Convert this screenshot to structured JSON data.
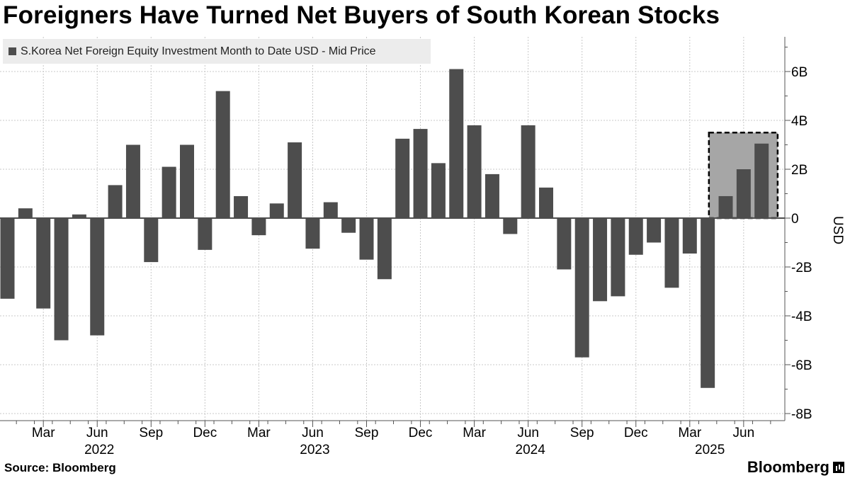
{
  "title": "Foreigners Have Turned Net Buyers of South Korean Stocks",
  "source": "Source: Bloomberg",
  "brand": "Bloomberg",
  "chart_data": {
    "type": "bar",
    "series": [
      {
        "name": "S.Korea Net Foreign Equity Investment Month to Date USD - Mid Price",
        "values": [
          -3.3,
          0.4,
          -3.7,
          -5.0,
          0.15,
          -4.8,
          1.35,
          3.0,
          -1.8,
          2.1,
          3.0,
          -1.3,
          5.2,
          0.9,
          -0.7,
          0.6,
          3.1,
          -1.25,
          0.65,
          -0.6,
          -1.7,
          -2.5,
          3.25,
          3.65,
          2.25,
          6.1,
          3.8,
          1.8,
          -0.65,
          3.8,
          1.25,
          -2.1,
          -5.7,
          -3.4,
          -3.2,
          -1.5,
          -1.0,
          -2.85,
          -1.45,
          -6.95,
          0.9,
          2.0,
          3.05
        ],
        "color": "#4d4d4d"
      }
    ],
    "x_tick_labels": [
      "Mar",
      "Jun",
      "Sep",
      "Dec",
      "Mar",
      "Jun",
      "Sep",
      "Dec",
      "Mar",
      "Jun",
      "Sep",
      "Dec",
      "Mar",
      "Jun"
    ],
    "x_tick_bar_index": [
      2,
      5,
      8,
      11,
      14,
      17,
      20,
      23,
      26,
      29,
      32,
      35,
      38,
      41
    ],
    "year_labels": [
      "2022",
      "2023",
      "2024",
      "2025"
    ],
    "year_bar_index": [
      5,
      17,
      29,
      39
    ],
    "y_ticks": [
      6,
      4,
      2,
      0,
      -2,
      -4,
      -6,
      -8
    ],
    "y_tick_labels": [
      "6B",
      "4B",
      "2B",
      "0",
      "-2B",
      "-4B",
      "-6B",
      "-8B"
    ],
    "ylabel": "USD",
    "ylim": [
      -8.1,
      7.3
    ],
    "highlight": {
      "from_index": 40,
      "to_index": 42,
      "y_top": 3.5,
      "fill": "#a6a6a6"
    },
    "grid": true,
    "legend_position": "top-left"
  }
}
